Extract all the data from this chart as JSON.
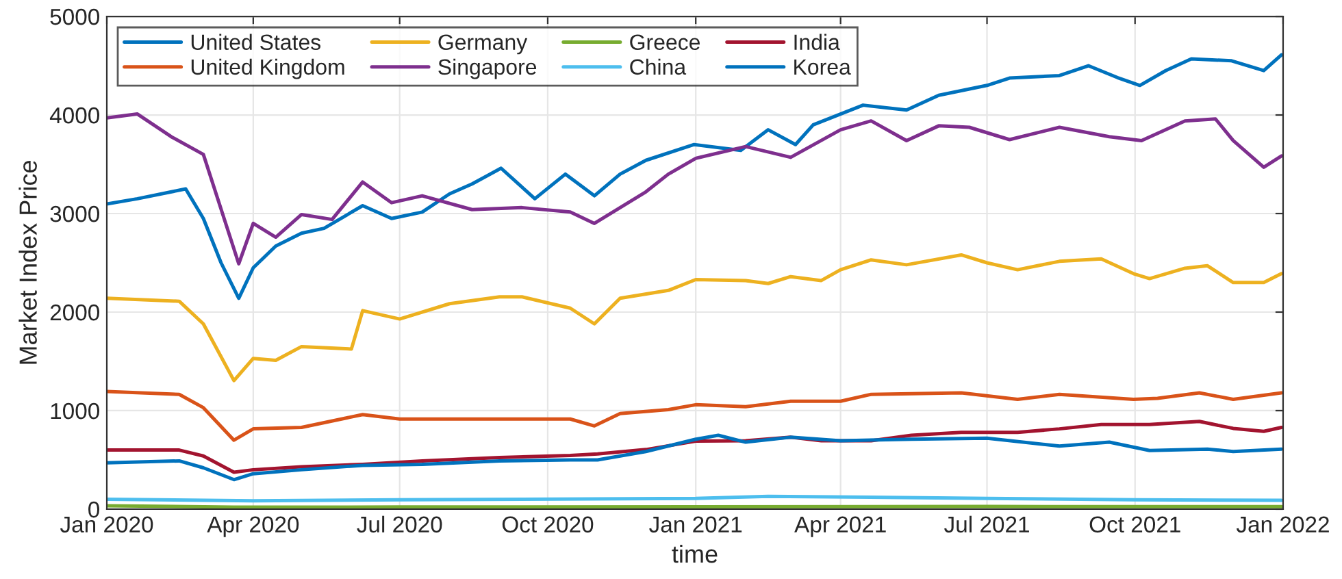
{
  "chart_data": {
    "type": "line",
    "xlabel": "time",
    "ylabel": "Market Index Price",
    "xlim": [
      "2020-01-01",
      "2022-01-01"
    ],
    "ylim": [
      0,
      5000
    ],
    "xticks": [
      {
        "value": "2020-01-01",
        "label": "Jan 2020"
      },
      {
        "value": "2020-04-01",
        "label": "Apr 2020"
      },
      {
        "value": "2020-07-01",
        "label": "Jul 2020"
      },
      {
        "value": "2020-10-01",
        "label": "Oct 2020"
      },
      {
        "value": "2021-01-01",
        "label": "Jan 2021"
      },
      {
        "value": "2021-04-01",
        "label": "Apr 2021"
      },
      {
        "value": "2021-07-01",
        "label": "Jul 2021"
      },
      {
        "value": "2021-10-01",
        "label": "Oct 2021"
      },
      {
        "value": "2022-01-01",
        "label": "Jan 2022"
      }
    ],
    "yticks": [
      0,
      1000,
      2000,
      3000,
      4000,
      5000
    ],
    "grid": true,
    "legend": "top left",
    "line_style": "solid",
    "marker": "none",
    "series": [
      {
        "name": "United States",
        "color": "#0072bd",
        "x": [
          "2020-01-01",
          "2020-01-20",
          "2020-02-19",
          "2020-03-01",
          "2020-03-12",
          "2020-03-23",
          "2020-04-01",
          "2020-04-15",
          "2020-05-01",
          "2020-05-15",
          "2020-06-08",
          "2020-06-26",
          "2020-07-15",
          "2020-08-01",
          "2020-08-15",
          "2020-09-02",
          "2020-09-23",
          "2020-10-12",
          "2020-10-30",
          "2020-11-15",
          "2020-12-01",
          "2020-12-31",
          "2021-01-29",
          "2021-02-15",
          "2021-03-04",
          "2021-03-15",
          "2021-04-15",
          "2021-05-12",
          "2021-06-01",
          "2021-07-01",
          "2021-07-15",
          "2021-08-15",
          "2021-09-02",
          "2021-09-20",
          "2021-10-04",
          "2021-10-20",
          "2021-11-05",
          "2021-11-30",
          "2021-12-20",
          "2021-12-31"
        ],
        "values": [
          3097,
          3150,
          3250,
          2950,
          2500,
          2140,
          2450,
          2670,
          2800,
          2850,
          3080,
          2950,
          3015,
          3200,
          3300,
          3460,
          3150,
          3400,
          3180,
          3400,
          3540,
          3700,
          3640,
          3850,
          3700,
          3900,
          4100,
          4050,
          4200,
          4300,
          4375,
          4400,
          4500,
          4380,
          4300,
          4450,
          4570,
          4550,
          4450,
          4610
        ]
      },
      {
        "name": "United Kingdom",
        "color": "#d95319",
        "x": [
          "2020-01-01",
          "2020-02-15",
          "2020-03-01",
          "2020-03-20",
          "2020-04-01",
          "2020-05-01",
          "2020-06-08",
          "2020-07-01",
          "2020-09-01",
          "2020-10-15",
          "2020-10-30",
          "2020-11-15",
          "2020-12-15",
          "2021-01-01",
          "2021-02-01",
          "2021-03-01",
          "2021-04-01",
          "2021-04-20",
          "2021-06-15",
          "2021-07-20",
          "2021-08-15",
          "2021-09-30",
          "2021-10-15",
          "2021-11-10",
          "2021-12-01",
          "2021-12-31"
        ],
        "values": [
          1195,
          1165,
          1030,
          700,
          815,
          830,
          960,
          915,
          915,
          915,
          845,
          970,
          1010,
          1060,
          1040,
          1095,
          1095,
          1165,
          1180,
          1115,
          1165,
          1115,
          1125,
          1180,
          1115,
          1180
        ]
      },
      {
        "name": "Germany",
        "color": "#edb120",
        "x": [
          "2020-01-01",
          "2020-02-15",
          "2020-03-01",
          "2020-03-20",
          "2020-04-01",
          "2020-04-15",
          "2020-05-01",
          "2020-06-01",
          "2020-06-08",
          "2020-07-01",
          "2020-08-01",
          "2020-09-01",
          "2020-09-15",
          "2020-10-15",
          "2020-10-30",
          "2020-11-15",
          "2020-12-15",
          "2021-01-01",
          "2021-02-01",
          "2021-02-15",
          "2021-03-01",
          "2021-03-20",
          "2021-04-01",
          "2021-04-20",
          "2021-05-12",
          "2021-06-15",
          "2021-07-01",
          "2021-07-20",
          "2021-08-15",
          "2021-09-10",
          "2021-09-30",
          "2021-10-10",
          "2021-11-01",
          "2021-11-15",
          "2021-12-01",
          "2021-12-20",
          "2021-12-31"
        ],
        "values": [
          2140,
          2110,
          1880,
          1305,
          1530,
          1510,
          1650,
          1625,
          2015,
          1930,
          2085,
          2155,
          2155,
          2040,
          1880,
          2140,
          2220,
          2330,
          2320,
          2290,
          2360,
          2320,
          2430,
          2530,
          2480,
          2580,
          2500,
          2430,
          2515,
          2540,
          2390,
          2340,
          2445,
          2470,
          2300,
          2300,
          2390
        ]
      },
      {
        "name": "Singapore",
        "color": "#7e2f8e",
        "x": [
          "2020-01-01",
          "2020-01-20",
          "2020-02-10",
          "2020-03-01",
          "2020-03-23",
          "2020-04-01",
          "2020-04-15",
          "2020-05-01",
          "2020-05-20",
          "2020-06-08",
          "2020-06-26",
          "2020-07-15",
          "2020-08-15",
          "2020-09-15",
          "2020-10-15",
          "2020-10-30",
          "2020-11-15",
          "2020-12-01",
          "2020-12-15",
          "2021-01-01",
          "2021-02-01",
          "2021-03-01",
          "2021-04-01",
          "2021-04-20",
          "2021-05-12",
          "2021-06-01",
          "2021-06-20",
          "2021-07-15",
          "2021-08-15",
          "2021-09-15",
          "2021-10-05",
          "2021-11-01",
          "2021-11-20",
          "2021-12-01",
          "2021-12-20",
          "2021-12-31"
        ],
        "values": [
          3970,
          4010,
          3780,
          3600,
          2490,
          2900,
          2760,
          2990,
          2940,
          3320,
          3110,
          3180,
          3040,
          3060,
          3015,
          2900,
          3060,
          3220,
          3400,
          3560,
          3680,
          3570,
          3850,
          3940,
          3740,
          3890,
          3875,
          3750,
          3875,
          3780,
          3740,
          3940,
          3960,
          3740,
          3470,
          3585
        ]
      },
      {
        "name": "Greece",
        "color": "#77ac30",
        "x": [
          "2020-01-01",
          "2020-03-20",
          "2020-07-01",
          "2021-01-01",
          "2021-07-01",
          "2021-12-31"
        ],
        "values": [
          35,
          20,
          22,
          24,
          27,
          25
        ]
      },
      {
        "name": "China",
        "color": "#4dbeee",
        "x": [
          "2020-01-01",
          "2020-04-01",
          "2020-07-01",
          "2021-01-01",
          "2021-02-15",
          "2021-07-01",
          "2021-10-01",
          "2021-12-31"
        ],
        "values": [
          100,
          85,
          95,
          110,
          130,
          110,
          95,
          90
        ]
      },
      {
        "name": "India",
        "color": "#a2142f",
        "x": [
          "2020-01-01",
          "2020-02-15",
          "2020-03-01",
          "2020-03-20",
          "2020-04-01",
          "2020-05-01",
          "2020-06-08",
          "2020-07-15",
          "2020-09-01",
          "2020-10-15",
          "2020-11-01",
          "2020-12-01",
          "2021-01-01",
          "2021-02-01",
          "2021-03-01",
          "2021-03-20",
          "2021-04-20",
          "2021-05-15",
          "2021-06-15",
          "2021-07-20",
          "2021-08-15",
          "2021-09-10",
          "2021-10-10",
          "2021-11-10",
          "2021-12-01",
          "2021-12-20",
          "2021-12-31"
        ],
        "values": [
          600,
          600,
          540,
          375,
          400,
          430,
          455,
          490,
          525,
          545,
          560,
          605,
          690,
          695,
          730,
          695,
          695,
          750,
          780,
          780,
          815,
          860,
          860,
          890,
          820,
          790,
          830
        ]
      },
      {
        "name": "Korea",
        "color": "#0072bd",
        "x": [
          "2020-01-01",
          "2020-02-15",
          "2020-03-01",
          "2020-03-20",
          "2020-04-01",
          "2020-05-01",
          "2020-06-08",
          "2020-07-15",
          "2020-09-01",
          "2020-10-15",
          "2020-11-01",
          "2020-12-01",
          "2021-01-01",
          "2021-01-15",
          "2021-02-01",
          "2021-03-01",
          "2021-04-01",
          "2021-05-15",
          "2021-07-01",
          "2021-08-15",
          "2021-09-15",
          "2021-10-10",
          "2021-11-15",
          "2021-12-01",
          "2021-12-31"
        ],
        "values": [
          470,
          490,
          420,
          300,
          360,
          400,
          445,
          455,
          490,
          500,
          500,
          585,
          710,
          750,
          680,
          730,
          695,
          710,
          720,
          640,
          680,
          595,
          610,
          585,
          610
        ]
      }
    ]
  }
}
